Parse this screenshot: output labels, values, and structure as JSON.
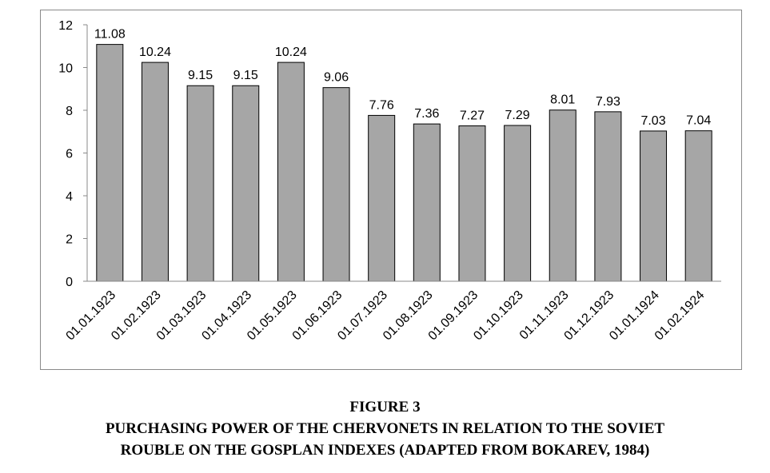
{
  "chart_data": {
    "type": "bar",
    "categories": [
      "01.01.1923",
      "01.02.1923",
      "01.03.1923",
      "01.04.1923",
      "01.05.1923",
      "01.06.1923",
      "01.07.1923",
      "01.08.1923",
      "01.09.1923",
      "01.10.1923",
      "01.11.1923",
      "01.12.1923",
      "01.01.1924",
      "01.02.1924"
    ],
    "values": [
      11.08,
      10.24,
      9.15,
      9.15,
      10.24,
      9.06,
      7.76,
      7.36,
      7.27,
      7.29,
      8.01,
      7.93,
      7.03,
      7.04
    ],
    "value_labels": [
      "11.08",
      "10.24",
      "9.15",
      "9.15",
      "10.24",
      "9.06",
      "7.76",
      "7.36",
      "7.27",
      "7.29",
      "8.01",
      "7.93",
      "7.03",
      "7.04"
    ],
    "ylim": [
      0,
      12
    ],
    "yticks": [
      "0",
      "2",
      "4",
      "6",
      "8",
      "10",
      "12"
    ],
    "grid": false,
    "legend": "none",
    "bar_color": "#a6a6a6",
    "bar_edge_color": "#000000"
  },
  "caption": {
    "figure_label": "FIGURE 3",
    "line1": "PURCHASING POWER OF THE CHERVONETS IN RELATION TO THE SOVIET",
    "line2": "ROUBLE ON THE GOSPLAN INDEXES (ADAPTED FROM BOKAREV, 1984)"
  }
}
